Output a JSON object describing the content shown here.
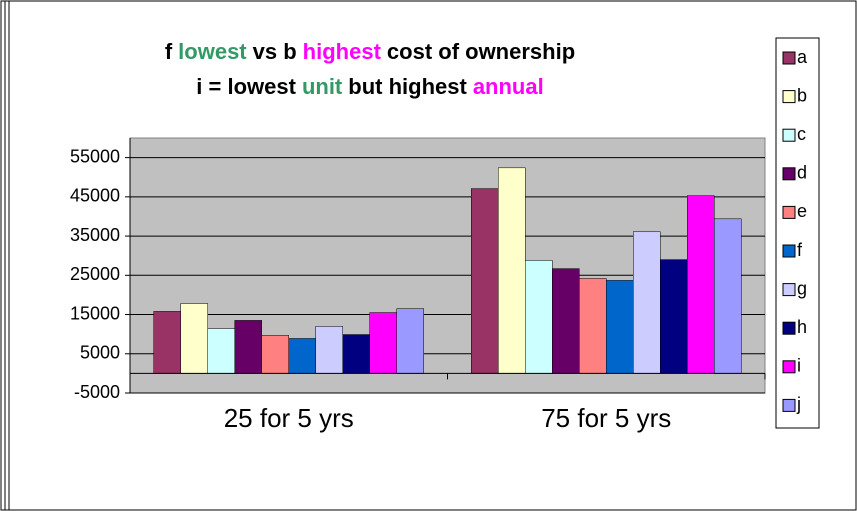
{
  "chart_data": {
    "type": "bar",
    "title_lines": [
      [
        {
          "text": "f",
          "color": "#000000"
        },
        {
          "text": "lowest",
          "color": "#339966"
        },
        {
          "text": "vs b",
          "color": "#000000"
        },
        {
          "text": "highest",
          "color": "#ff00ff"
        },
        {
          "text": "cost of ownership",
          "color": "#000000"
        }
      ],
      [
        {
          "text": "i = lowest",
          "color": "#000000"
        },
        {
          "text": "unit",
          "color": "#339966"
        },
        {
          "text": "but highest",
          "color": "#000000"
        },
        {
          "text": "annual",
          "color": "#ff00ff"
        }
      ]
    ],
    "categories": [
      "25 for 5 yrs",
      "75 for 5 yrs"
    ],
    "series": [
      {
        "name": "a",
        "color": "#993366",
        "values": [
          15800,
          47100
        ]
      },
      {
        "name": "b",
        "color": "#ffffcc",
        "values": [
          17800,
          52400
        ]
      },
      {
        "name": "c",
        "color": "#ccffff",
        "values": [
          11400,
          28800
        ]
      },
      {
        "name": "d",
        "color": "#660066",
        "values": [
          13500,
          26700
        ]
      },
      {
        "name": "e",
        "color": "#ff8080",
        "values": [
          9700,
          24200
        ]
      },
      {
        "name": "f",
        "color": "#0066cc",
        "values": [
          8900,
          23700
        ]
      },
      {
        "name": "g",
        "color": "#ccccff",
        "values": [
          12000,
          36100
        ]
      },
      {
        "name": "h",
        "color": "#000080",
        "values": [
          9900,
          29000
        ]
      },
      {
        "name": "i",
        "color": "#ff00ff",
        "values": [
          15500,
          45300
        ]
      },
      {
        "name": "j",
        "color": "#9999ff",
        "values": [
          16500,
          39400
        ]
      }
    ],
    "ylim": [
      -5000,
      60000
    ],
    "yticks": [
      -5000,
      5000,
      15000,
      25000,
      35000,
      45000,
      55000
    ],
    "grid": true,
    "legend": "right"
  }
}
